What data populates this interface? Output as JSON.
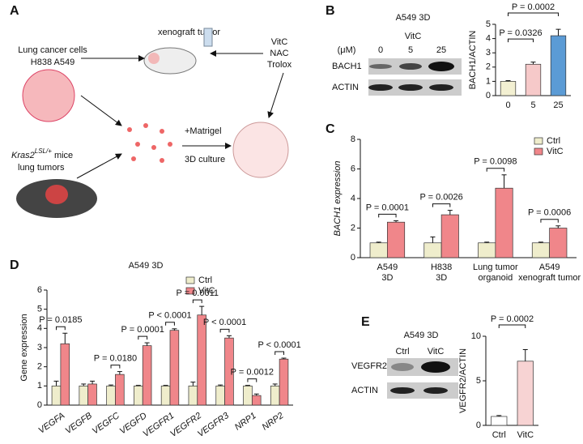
{
  "panel_labels": [
    "A",
    "B",
    "C",
    "D",
    "E"
  ],
  "panel_a": {
    "xenograft": "xenograft tumor",
    "cells": "Lung cancer cells",
    "cell_lines": "H838 A549",
    "treatments": [
      "VitC",
      "NAC",
      "Trolox"
    ],
    "matrigel": "+Matrigel",
    "culture": "3D culture",
    "kras": "Kras2",
    "lsl": "LSL/+",
    "mice": " mice",
    "tumors": "lung tumors"
  },
  "blot_b": {
    "title": "A549 3D",
    "treatment": "VitC",
    "unit": "(μM)",
    "doses": [
      "0",
      "5",
      "25"
    ],
    "rows": [
      "BACH1",
      "ACTIN"
    ]
  },
  "blot_e": {
    "title": "A549 3D",
    "lanes": [
      "Ctrl",
      "VitC"
    ],
    "rows": [
      "VEGFR2",
      "ACTIN"
    ]
  },
  "chart_data": [
    {
      "type": "bar",
      "ylabel": "BACH1/ACTIN",
      "categories": [
        "0",
        "5",
        "25"
      ],
      "values": [
        1,
        2.2,
        4.2
      ],
      "errors": [
        0.05,
        0.15,
        0.45
      ],
      "colors": [
        "#f3f0d2",
        "#f6c9c9",
        "#5b9bd5"
      ],
      "ylim": [
        0,
        5
      ],
      "yticks": [
        0,
        1,
        2,
        3,
        4,
        5
      ],
      "annotations": [
        "P = 0.0326",
        "P = 0.0002"
      ]
    },
    {
      "type": "bar",
      "ylabel": "BACH1 expression",
      "categories": [
        [
          "A549",
          "3D"
        ],
        [
          "H838",
          "3D"
        ],
        [
          "Lung tumor",
          "organoid"
        ],
        [
          "A549",
          "xenograft tumor"
        ]
      ],
      "series": [
        {
          "name": "Ctrl",
          "color": "#efedcc",
          "values": [
            1,
            1,
            1,
            1
          ],
          "errors": [
            0.05,
            0.4,
            0.05,
            0.05
          ]
        },
        {
          "name": "VitC",
          "color": "#f0868a",
          "values": [
            2.4,
            2.9,
            4.7,
            2.0
          ],
          "errors": [
            0.1,
            0.3,
            0.9,
            0.15
          ]
        }
      ],
      "ylim": [
        0,
        8
      ],
      "yticks": [
        0,
        2,
        4,
        6,
        8
      ],
      "legend": "upper right",
      "annotations": [
        "P = 0.0001",
        "P = 0.0026",
        "P = 0.0098",
        "P = 0.0006"
      ]
    },
    {
      "type": "bar",
      "title": "A549 3D",
      "ylabel": "Gene expression",
      "categories": [
        "VEGFA",
        "VEGFB",
        "VEGFC",
        "VEGFD",
        "VEGFR1",
        "VEGFR2",
        "VEGFR3",
        "NRP1",
        "NRP2"
      ],
      "series": [
        {
          "name": "Ctrl",
          "color": "#efedcc",
          "values": [
            1,
            1,
            1,
            1,
            1,
            1,
            1,
            1,
            1
          ],
          "errors": [
            0.25,
            0.1,
            0.05,
            0.03,
            0.03,
            0.2,
            0.05,
            0.03,
            0.1
          ]
        },
        {
          "name": "VitC",
          "color": "#f0868a",
          "values": [
            3.2,
            1.1,
            1.6,
            3.1,
            3.9,
            4.7,
            3.5,
            0.5,
            2.4
          ],
          "errors": [
            0.55,
            0.15,
            0.15,
            0.15,
            0.08,
            0.45,
            0.12,
            0.08,
            0.05
          ]
        }
      ],
      "ylim": [
        0,
        6
      ],
      "yticks": [
        0,
        1,
        2,
        3,
        4,
        5,
        6
      ],
      "legend": "upper center",
      "annotations": [
        "P = 0.0185",
        null,
        "P = 0.0180",
        "P = 0.0001",
        "P < 0.0001",
        "P = 0.0011",
        "P < 0.0001",
        "P = 0.0012",
        "P < 0.0001"
      ]
    },
    {
      "type": "bar",
      "ylabel": "VEGFR2/ACTIN",
      "categories": [
        "Ctrl",
        "VitC"
      ],
      "values": [
        1,
        7.2
      ],
      "errors": [
        0.1,
        1.3
      ],
      "colors": [
        "#ffffff",
        "#f7d3d3"
      ],
      "ylim": [
        0,
        10
      ],
      "yticks": [
        0,
        5,
        10
      ],
      "annotations": [
        "P = 0.0002"
      ]
    }
  ]
}
